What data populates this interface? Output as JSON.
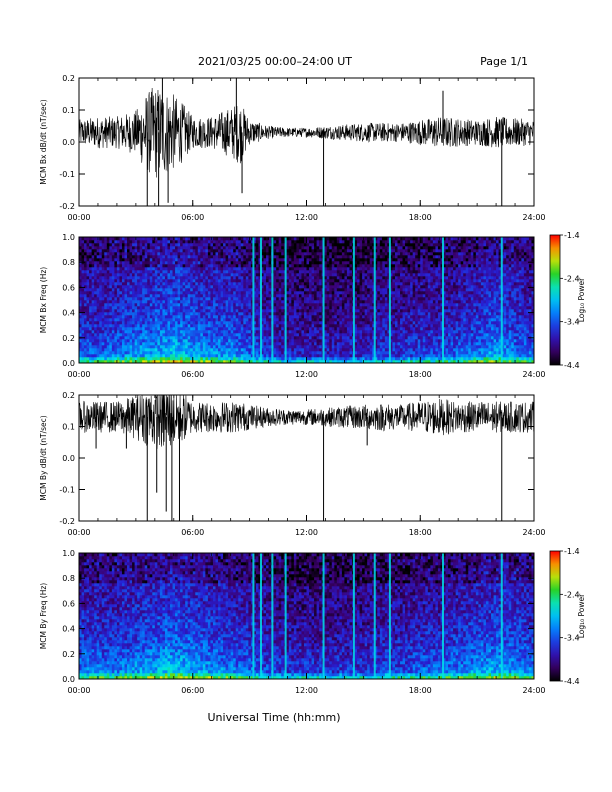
{
  "header": {
    "title": "2021/03/25  00:00–24:00 UT",
    "page": "Page 1/1"
  },
  "footer": {
    "xlabel": "Universal Time (hh:mm)"
  },
  "colors": {
    "trace": "#000000",
    "frame": "#000000"
  },
  "chart_data": [
    {
      "type": "line",
      "ylabel": "MCM Bx dB/dt (nT/sec)",
      "ylim": [
        -0.2,
        0.2
      ],
      "yticks": [
        "-0.2",
        "-0.1",
        "0.0",
        "0.1",
        "0.2"
      ],
      "xlim": [
        0,
        24
      ],
      "xticks": [
        "00:00",
        "06:00",
        "12:00",
        "18:00",
        "24:00"
      ],
      "baseline": 0.03,
      "series": [
        {
          "x": [
            0,
            1,
            2,
            3,
            3.5,
            4,
            4.5,
            5,
            5.5,
            6,
            7,
            8,
            8.5,
            9,
            10,
            11,
            12,
            13,
            14,
            15,
            16,
            17,
            18,
            19,
            20,
            21,
            22,
            23,
            24
          ],
          "amplitude": [
            0.04,
            0.05,
            0.05,
            0.07,
            0.12,
            0.15,
            0.14,
            0.12,
            0.09,
            0.05,
            0.05,
            0.08,
            0.1,
            0.04,
            0.02,
            0.015,
            0.015,
            0.02,
            0.025,
            0.03,
            0.03,
            0.03,
            0.04,
            0.05,
            0.045,
            0.04,
            0.05,
            0.045,
            0.04
          ]
        }
      ],
      "spikes": [
        [
          3.6,
          -0.2
        ],
        [
          4.2,
          -0.2
        ],
        [
          4.7,
          -0.19
        ],
        [
          8.6,
          -0.16
        ],
        [
          12.9,
          -0.2
        ],
        [
          22.3,
          -0.2
        ],
        [
          8.3,
          0.2
        ],
        [
          4.4,
          0.2
        ],
        [
          19.2,
          0.16
        ]
      ]
    },
    {
      "type": "heatmap",
      "ylabel": "MCM Bx Freq (Hz)",
      "ylim": [
        0.0,
        1.0
      ],
      "yticks": [
        "0.0",
        "0.2",
        "0.4",
        "0.6",
        "0.8",
        "1.0"
      ],
      "xlim": [
        0,
        24
      ],
      "xticks": [
        "00:00",
        "06:00",
        "12:00",
        "18:00",
        "24:00"
      ],
      "colorbar": {
        "label": "Log₁₀ Power",
        "range": [
          -4.4,
          -1.4
        ],
        "ticks": [
          "-1.4",
          "-2.4",
          "-3.4",
          "-4.4"
        ]
      },
      "activity": [
        0.45,
        0.45,
        0.5,
        0.55,
        0.6,
        0.65,
        0.6,
        0.55,
        0.55,
        0.45,
        0.35,
        0.3,
        0.3,
        0.3,
        0.3,
        0.3,
        0.35,
        0.35,
        0.4,
        0.4,
        0.45,
        0.5,
        0.6,
        0.5,
        0.45
      ],
      "streaks": [
        9.2,
        9.6,
        10.2,
        10.9,
        12.9,
        14.5,
        15.6,
        16.4,
        19.2,
        22.3
      ]
    },
    {
      "type": "line",
      "ylabel": "MCM By dB/dt (nT/sec)",
      "ylim": [
        -0.2,
        0.2
      ],
      "yticks": [
        "-0.2",
        "-0.1",
        "0.0",
        "0.1",
        "0.2"
      ],
      "xlim": [
        0,
        24
      ],
      "xticks": [
        "00:00",
        "06:00",
        "12:00",
        "18:00",
        "24:00"
      ],
      "baseline": 0.13,
      "series": [
        {
          "x": [
            0,
            1,
            2,
            3,
            3.5,
            4,
            4.5,
            5,
            5.5,
            6,
            7,
            8,
            8.5,
            9,
            10,
            11,
            12,
            13,
            14,
            15,
            16,
            17,
            18,
            19,
            20,
            21,
            22,
            23,
            24
          ],
          "amplitude": [
            0.05,
            0.05,
            0.05,
            0.07,
            0.09,
            0.1,
            0.11,
            0.1,
            0.08,
            0.05,
            0.05,
            0.05,
            0.05,
            0.04,
            0.03,
            0.025,
            0.025,
            0.03,
            0.035,
            0.04,
            0.045,
            0.04,
            0.05,
            0.06,
            0.05,
            0.05,
            0.05,
            0.05,
            0.05
          ]
        }
      ],
      "spikes": [
        [
          3.6,
          -0.2
        ],
        [
          4.1,
          -0.11
        ],
        [
          4.6,
          -0.17
        ],
        [
          4.9,
          -0.2
        ],
        [
          5.3,
          -0.2
        ],
        [
          2.5,
          0.03
        ],
        [
          0.9,
          0.03
        ],
        [
          12.9,
          -0.2
        ],
        [
          22.3,
          -0.2
        ],
        [
          15.2,
          0.04
        ]
      ]
    },
    {
      "type": "heatmap",
      "ylabel": "MCM By Freq (Hz)",
      "ylim": [
        0.0,
        1.0
      ],
      "yticks": [
        "0.0",
        "0.2",
        "0.4",
        "0.6",
        "0.8",
        "1.0"
      ],
      "xlim": [
        0,
        24
      ],
      "xticks": [
        "00:00",
        "06:00",
        "12:00",
        "18:00",
        "24:00"
      ],
      "colorbar": {
        "label": "Log₁₀ Power",
        "range": [
          -4.4,
          -1.4
        ],
        "ticks": [
          "-1.4",
          "-2.4",
          "-3.4",
          "-4.4"
        ]
      },
      "activity": [
        0.5,
        0.5,
        0.5,
        0.55,
        0.6,
        0.65,
        0.6,
        0.55,
        0.5,
        0.45,
        0.4,
        0.35,
        0.35,
        0.35,
        0.35,
        0.35,
        0.4,
        0.4,
        0.45,
        0.45,
        0.5,
        0.55,
        0.6,
        0.55,
        0.5
      ],
      "streaks": [
        9.2,
        9.6,
        10.2,
        10.9,
        12.9,
        14.5,
        15.6,
        16.4,
        19.2,
        22.3
      ]
    }
  ]
}
